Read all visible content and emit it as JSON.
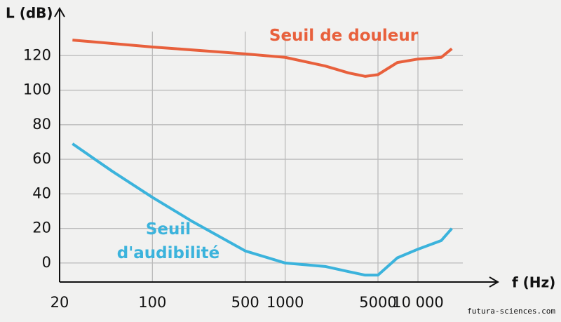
{
  "chart_data": {
    "type": "line",
    "y_label": "L (dB)",
    "x_label": "f (Hz)",
    "source": "futura-sciences.com",
    "log_x": true,
    "grid": true,
    "xlim": [
      20,
      40000
    ],
    "ylim": [
      -11,
      140
    ],
    "xticks": [
      20,
      100,
      500,
      1000,
      5000,
      {
        "value": 10000,
        "label": "10 000"
      }
    ],
    "yticks": [
      0,
      20,
      40,
      60,
      80,
      100,
      120
    ],
    "series": [
      {
        "name": "Seuil de douleur",
        "color": "#e8603c",
        "x": [
          25,
          100,
          500,
          1000,
          2000,
          3000,
          4000,
          5000,
          7000,
          10000,
          15000,
          18000
        ],
        "values": [
          129,
          125,
          121,
          119,
          114,
          110,
          108,
          109,
          116,
          118,
          119,
          124
        ]
      },
      {
        "name": "Seuil d'audibilité",
        "color": "#3bb3dc",
        "x": [
          25,
          50,
          100,
          200,
          500,
          1000,
          2000,
          3000,
          4000,
          5000,
          7000,
          10000,
          15000,
          18000
        ],
        "values": [
          69,
          53,
          38,
          24,
          7,
          0,
          -2,
          -5,
          -7,
          -7,
          3,
          8,
          13,
          20
        ]
      }
    ]
  }
}
